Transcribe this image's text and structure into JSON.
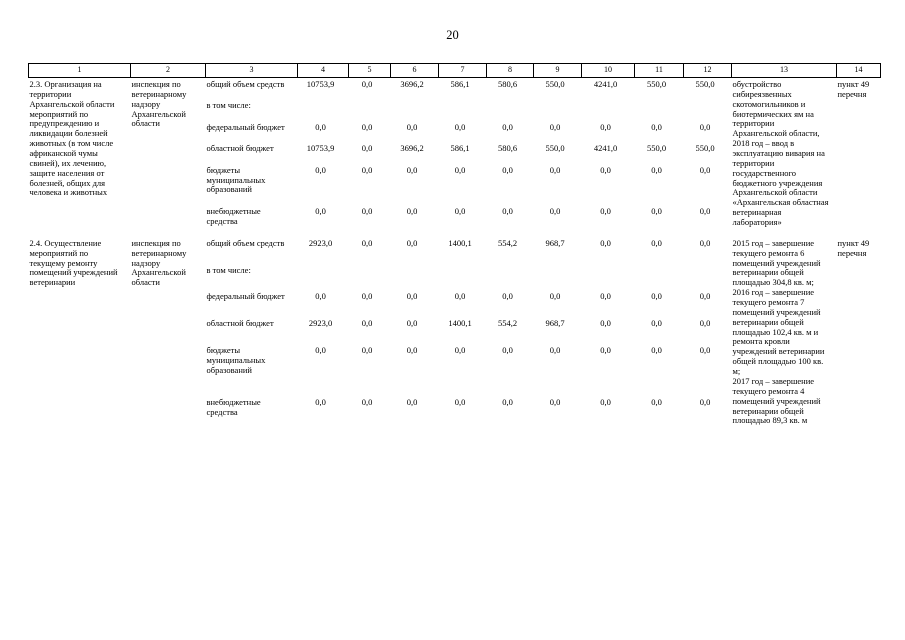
{
  "page_number": "20",
  "table": {
    "column_numbers": [
      "1",
      "2",
      "3",
      "4",
      "5",
      "6",
      "7",
      "8",
      "9",
      "10",
      "11",
      "12",
      "13",
      "14"
    ],
    "rows": [
      {
        "num": "2.3.",
        "title": "Организация на территории Архангельской области мероприятий по предупреждению и ликвидации болезней животных (в том числе африканской чумы свиней), их лечению, защите населения от болезней, общих для человека и животных",
        "executor": "инспекция по ветеринарному надзору Архангельской области",
        "budget_lines": [
          {
            "label": "общий объем средств",
            "values": [
              "10753,9",
              "0,0",
              "3696,2",
              "586,1",
              "580,6",
              "550,0",
              "4241,0",
              "550,0",
              "550,0"
            ]
          },
          {
            "label": "в том числе:",
            "values": []
          },
          {
            "label": "федеральный бюджет",
            "values": [
              "0,0",
              "0,0",
              "0,0",
              "0,0",
              "0,0",
              "0,0",
              "0,0",
              "0,0",
              "0,0"
            ]
          },
          {
            "label": "областной бюджет",
            "values": [
              "10753,9",
              "0,0",
              "3696,2",
              "586,1",
              "580,6",
              "550,0",
              "4241,0",
              "550,0",
              "550,0"
            ]
          },
          {
            "label": "бюджеты муниципальных образований",
            "values": [
              "0,0",
              "0,0",
              "0,0",
              "0,0",
              "0,0",
              "0,0",
              "0,0",
              "0,0",
              "0,0"
            ]
          },
          {
            "label": "внебюджетные средства",
            "values": [
              "0,0",
              "0,0",
              "0,0",
              "0,0",
              "0,0",
              "0,0",
              "0,0",
              "0,0",
              "0,0"
            ]
          }
        ],
        "result_paragraphs": [
          "обустройство сибиреязвенных скотомогильников и биотермических ям на территории Архангельской области,",
          "2018 год – ввод в эксплуатацию вивария на территории государственного бюджетного учреждения Архангельской области «Архангельская областная ветеринарная лаборатория»"
        ],
        "reference": "пункт 49 перечня"
      },
      {
        "num": "2.4.",
        "title": "Осуществление мероприятий по текущему ремонту помещений учреждений ветеринарии",
        "executor": "инспекция по ветеринарному надзору Архангельской области",
        "budget_lines": [
          {
            "label": "общий объем средств",
            "values": [
              "2923,0",
              "0,0",
              "0,0",
              "1400,1",
              "554,2",
              "968,7",
              "0,0",
              "0,0",
              "0,0"
            ]
          },
          {
            "label": "в том числе:",
            "values": []
          },
          {
            "label": "федеральный бюджет",
            "values": [
              "0,0",
              "0,0",
              "0,0",
              "0,0",
              "0,0",
              "0,0",
              "0,0",
              "0,0",
              "0,0"
            ]
          },
          {
            "label": "областной бюджет",
            "values": [
              "2923,0",
              "0,0",
              "0,0",
              "1400,1",
              "554,2",
              "968,7",
              "0,0",
              "0,0",
              "0,0"
            ]
          },
          {
            "label": "бюджеты муниципальных образований",
            "values": [
              "0,0",
              "0,0",
              "0,0",
              "0,0",
              "0,0",
              "0,0",
              "0,0",
              "0,0",
              "0,0"
            ]
          },
          {
            "label": "внебюджетные средства",
            "values": [
              "0,0",
              "0,0",
              "0,0",
              "0,0",
              "0,0",
              "0,0",
              "0,0",
              "0,0",
              "0,0"
            ]
          }
        ],
        "result_paragraphs": [
          "2015 год – завершение текущего ремонта 6 помещений учреждений ветеринарии общей площадью 304,8 кв. м;",
          "2016 год – завершение текущего ремонта 7 помещений учреждений ветеринарии общей площадью 102,4 кв. м и ремонта кровли учреждений ветеринарии общей площадью 100 кв. м;",
          "2017 год – завершение текущего ремонта 4 помещений учреждений ветеринарии общей площадью 89,3 кв. м"
        ],
        "reference": "пункт 49 перечня"
      }
    ]
  }
}
